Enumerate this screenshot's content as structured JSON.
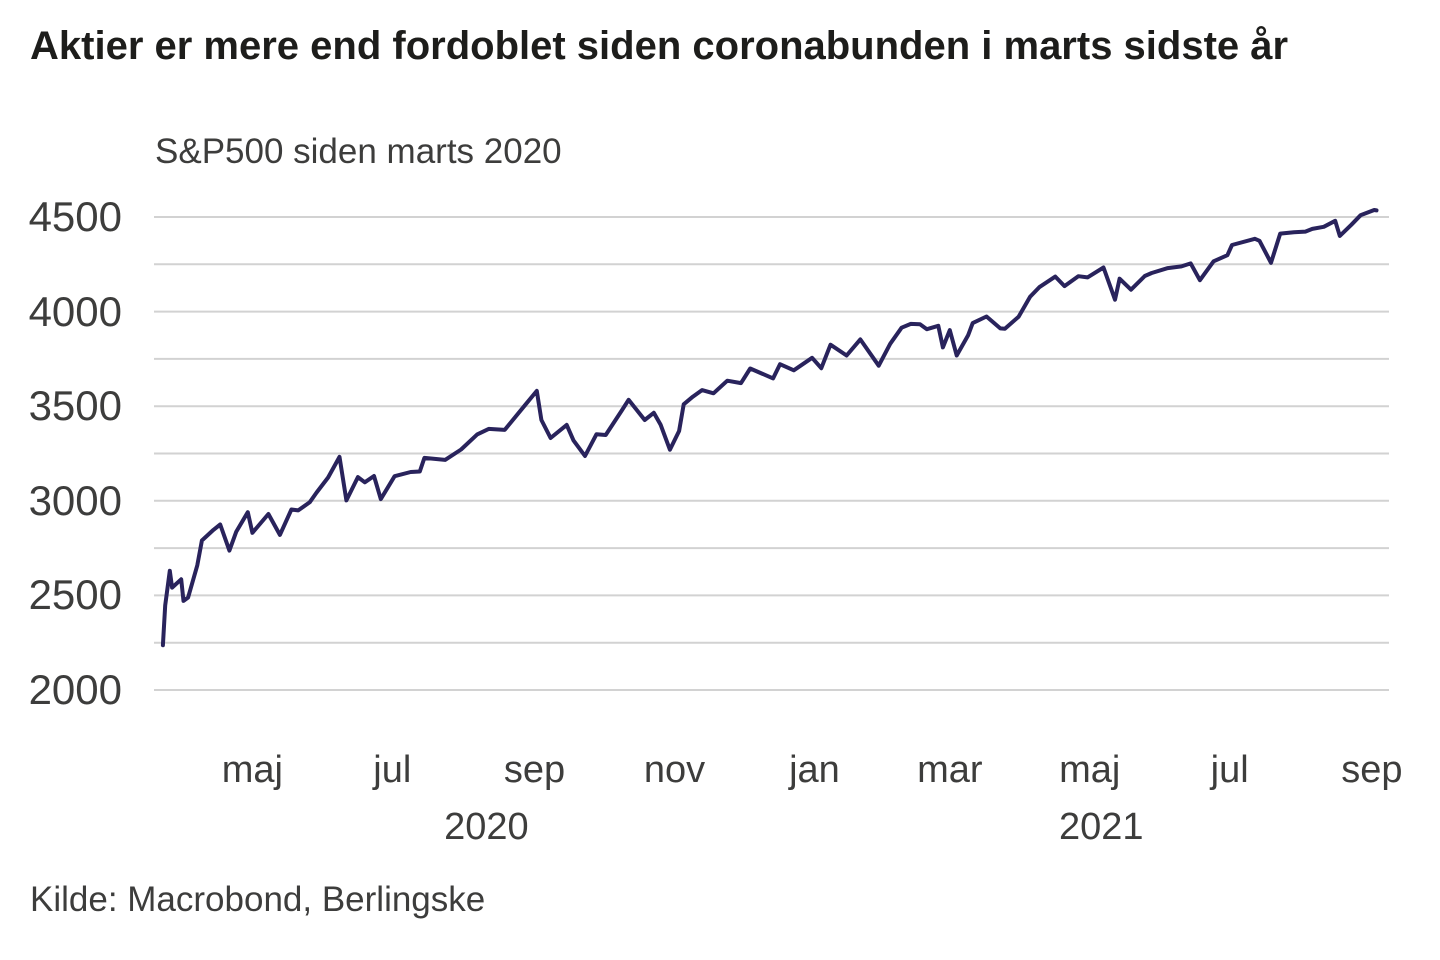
{
  "chart": {
    "title": "Aktier er mere end fordoblet siden coronabunden i marts sidste år",
    "subtitle": "S&P500 siden marts 2020",
    "source": "Kilde: Macrobond, Berlingske"
  },
  "colors": {
    "line": "#29235c",
    "grid": "#d2d2d2",
    "title_text": "#1d1d1b",
    "axis_text": "#3d3d3c",
    "background": "#ffffff"
  },
  "chart_data": {
    "type": "line",
    "title": "Aktier er mere end fordoblet siden coronabunden i marts sidste år",
    "subtitle": "S&P500 siden marts 2020",
    "source": "Kilde: Macrobond, Berlingske",
    "xlabel": "",
    "ylabel": "",
    "ylim": [
      2000,
      4500
    ],
    "y_ticks": [
      2000,
      2500,
      3000,
      3500,
      4000,
      4500
    ],
    "y_minor_step": 250,
    "grid": "horizontal",
    "grid_color": "#d2d2d2",
    "legend": "none",
    "x_ticks": [
      {
        "date": "2020-05-01",
        "label": "maj"
      },
      {
        "date": "2020-07-01",
        "label": "jul"
      },
      {
        "date": "2020-09-01",
        "label": "sep"
      },
      {
        "date": "2020-11-01",
        "label": "nov"
      },
      {
        "date": "2021-01-01",
        "label": "jan"
      },
      {
        "date": "2021-03-01",
        "label": "mar"
      },
      {
        "date": "2021-05-01",
        "label": "maj"
      },
      {
        "date": "2021-07-01",
        "label": "jul"
      },
      {
        "date": "2021-09-01",
        "label": "sep"
      }
    ],
    "year_labels": [
      {
        "date": "2020-08-11",
        "label": "2020"
      },
      {
        "date": "2021-05-06",
        "label": "2021"
      }
    ],
    "series": [
      {
        "name": "S&P500",
        "color": "#29235c",
        "points": [
          [
            "2020-03-23",
            2237
          ],
          [
            "2020-03-24",
            2447
          ],
          [
            "2020-03-26",
            2630
          ],
          [
            "2020-03-27",
            2541
          ],
          [
            "2020-03-31",
            2585
          ],
          [
            "2020-04-01",
            2471
          ],
          [
            "2020-04-03",
            2489
          ],
          [
            "2020-04-07",
            2659
          ],
          [
            "2020-04-09",
            2790
          ],
          [
            "2020-04-14",
            2846
          ],
          [
            "2020-04-17",
            2875
          ],
          [
            "2020-04-21",
            2737
          ],
          [
            "2020-04-24",
            2837
          ],
          [
            "2020-04-29",
            2940
          ],
          [
            "2020-05-01",
            2831
          ],
          [
            "2020-05-08",
            2930
          ],
          [
            "2020-05-13",
            2820
          ],
          [
            "2020-05-18",
            2954
          ],
          [
            "2020-05-21",
            2949
          ],
          [
            "2020-05-26",
            2992
          ],
          [
            "2020-05-29",
            3044
          ],
          [
            "2020-06-03",
            3123
          ],
          [
            "2020-06-08",
            3232
          ],
          [
            "2020-06-11",
            3002
          ],
          [
            "2020-06-16",
            3125
          ],
          [
            "2020-06-19",
            3098
          ],
          [
            "2020-06-23",
            3131
          ],
          [
            "2020-06-26",
            3009
          ],
          [
            "2020-07-02",
            3130
          ],
          [
            "2020-07-09",
            3152
          ],
          [
            "2020-07-13",
            3155
          ],
          [
            "2020-07-15",
            3227
          ],
          [
            "2020-07-24",
            3216
          ],
          [
            "2020-07-31",
            3271
          ],
          [
            "2020-08-07",
            3351
          ],
          [
            "2020-08-12",
            3380
          ],
          [
            "2020-08-19",
            3375
          ],
          [
            "2020-08-28",
            3508
          ],
          [
            "2020-09-02",
            3581
          ],
          [
            "2020-09-04",
            3427
          ],
          [
            "2020-09-08",
            3332
          ],
          [
            "2020-09-15",
            3401
          ],
          [
            "2020-09-18",
            3319
          ],
          [
            "2020-09-23",
            3237
          ],
          [
            "2020-09-28",
            3352
          ],
          [
            "2020-10-02",
            3348
          ],
          [
            "2020-10-09",
            3477
          ],
          [
            "2020-10-12",
            3534
          ],
          [
            "2020-10-19",
            3427
          ],
          [
            "2020-10-23",
            3465
          ],
          [
            "2020-10-26",
            3401
          ],
          [
            "2020-10-30",
            3270
          ],
          [
            "2020-11-03",
            3369
          ],
          [
            "2020-11-05",
            3510
          ],
          [
            "2020-11-09",
            3550
          ],
          [
            "2020-11-13",
            3585
          ],
          [
            "2020-11-18",
            3568
          ],
          [
            "2020-11-24",
            3635
          ],
          [
            "2020-11-30",
            3622
          ],
          [
            "2020-12-04",
            3699
          ],
          [
            "2020-12-09",
            3673
          ],
          [
            "2020-12-14",
            3647
          ],
          [
            "2020-12-17",
            3722
          ],
          [
            "2020-12-23",
            3690
          ],
          [
            "2020-12-31",
            3756
          ],
          [
            "2021-01-04",
            3701
          ],
          [
            "2021-01-08",
            3825
          ],
          [
            "2021-01-15",
            3768
          ],
          [
            "2021-01-21",
            3853
          ],
          [
            "2021-01-29",
            3714
          ],
          [
            "2021-02-03",
            3830
          ],
          [
            "2021-02-08",
            3915
          ],
          [
            "2021-02-12",
            3935
          ],
          [
            "2021-02-16",
            3933
          ],
          [
            "2021-02-19",
            3907
          ],
          [
            "2021-02-24",
            3925
          ],
          [
            "2021-02-26",
            3811
          ],
          [
            "2021-03-01",
            3902
          ],
          [
            "2021-03-04",
            3768
          ],
          [
            "2021-03-09",
            3876
          ],
          [
            "2021-03-11",
            3939
          ],
          [
            "2021-03-17",
            3974
          ],
          [
            "2021-03-23",
            3911
          ],
          [
            "2021-03-25",
            3909
          ],
          [
            "2021-03-31",
            3973
          ],
          [
            "2021-04-05",
            4078
          ],
          [
            "2021-04-09",
            4129
          ],
          [
            "2021-04-16",
            4185
          ],
          [
            "2021-04-20",
            4135
          ],
          [
            "2021-04-26",
            4187
          ],
          [
            "2021-04-30",
            4181
          ],
          [
            "2021-05-07",
            4233
          ],
          [
            "2021-05-12",
            4063
          ],
          [
            "2021-05-14",
            4174
          ],
          [
            "2021-05-19",
            4116
          ],
          [
            "2021-05-25",
            4188
          ],
          [
            "2021-05-28",
            4204
          ],
          [
            "2021-06-04",
            4230
          ],
          [
            "2021-06-10",
            4239
          ],
          [
            "2021-06-14",
            4255
          ],
          [
            "2021-06-18",
            4166
          ],
          [
            "2021-06-24",
            4266
          ],
          [
            "2021-06-30",
            4298
          ],
          [
            "2021-07-02",
            4352
          ],
          [
            "2021-07-12",
            4385
          ],
          [
            "2021-07-14",
            4374
          ],
          [
            "2021-07-19",
            4258
          ],
          [
            "2021-07-23",
            4412
          ],
          [
            "2021-07-29",
            4419
          ],
          [
            "2021-08-03",
            4423
          ],
          [
            "2021-08-06",
            4437
          ],
          [
            "2021-08-11",
            4448
          ],
          [
            "2021-08-16",
            4480
          ],
          [
            "2021-08-18",
            4400
          ],
          [
            "2021-08-23",
            4459
          ],
          [
            "2021-08-27",
            4509
          ],
          [
            "2021-09-02",
            4537
          ],
          [
            "2021-09-03",
            4535
          ]
        ]
      }
    ]
  }
}
